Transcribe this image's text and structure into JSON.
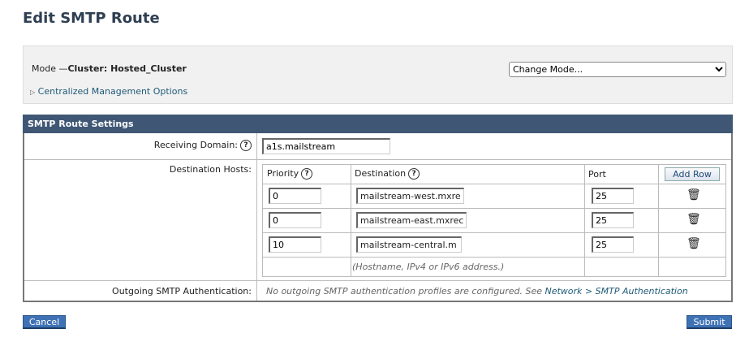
{
  "page_title": "Edit SMTP Route",
  "mode": {
    "label": "Mode —",
    "value": "Cluster: Hosted_Cluster",
    "change_mode": "Change Mode...",
    "cm_options": "Centralized Management Options"
  },
  "settings": {
    "header": "SMTP Route Settings",
    "receiving_domain_label": "Receiving Domain:",
    "receiving_domain_value": "a1s.mailstream",
    "destination_hosts_label": "Destination Hosts:",
    "columns": {
      "priority": "Priority",
      "destination": "Destination",
      "port": "Port",
      "add_row": "Add Row"
    },
    "rows": [
      {
        "priority": "0",
        "destination": "mailstream-west.mxre",
        "port": "25"
      },
      {
        "priority": "0",
        "destination": "mailstream-east.mxrec",
        "port": "25"
      },
      {
        "priority": "10",
        "destination": "mailstream-central.m",
        "port": "25"
      }
    ],
    "hint": "(Hostname, IPv4 or IPv6 address.)",
    "outgoing_label": "Outgoing SMTP Authentication:",
    "outgoing_text": "No outgoing SMTP authentication profiles are configured. See ",
    "outgoing_link": "Network > SMTP Authentication"
  },
  "buttons": {
    "cancel": "Cancel",
    "submit": "Submit"
  },
  "colors": {
    "header": "#3f5775",
    "button": "#3e72b5",
    "link": "#1e5a78"
  }
}
